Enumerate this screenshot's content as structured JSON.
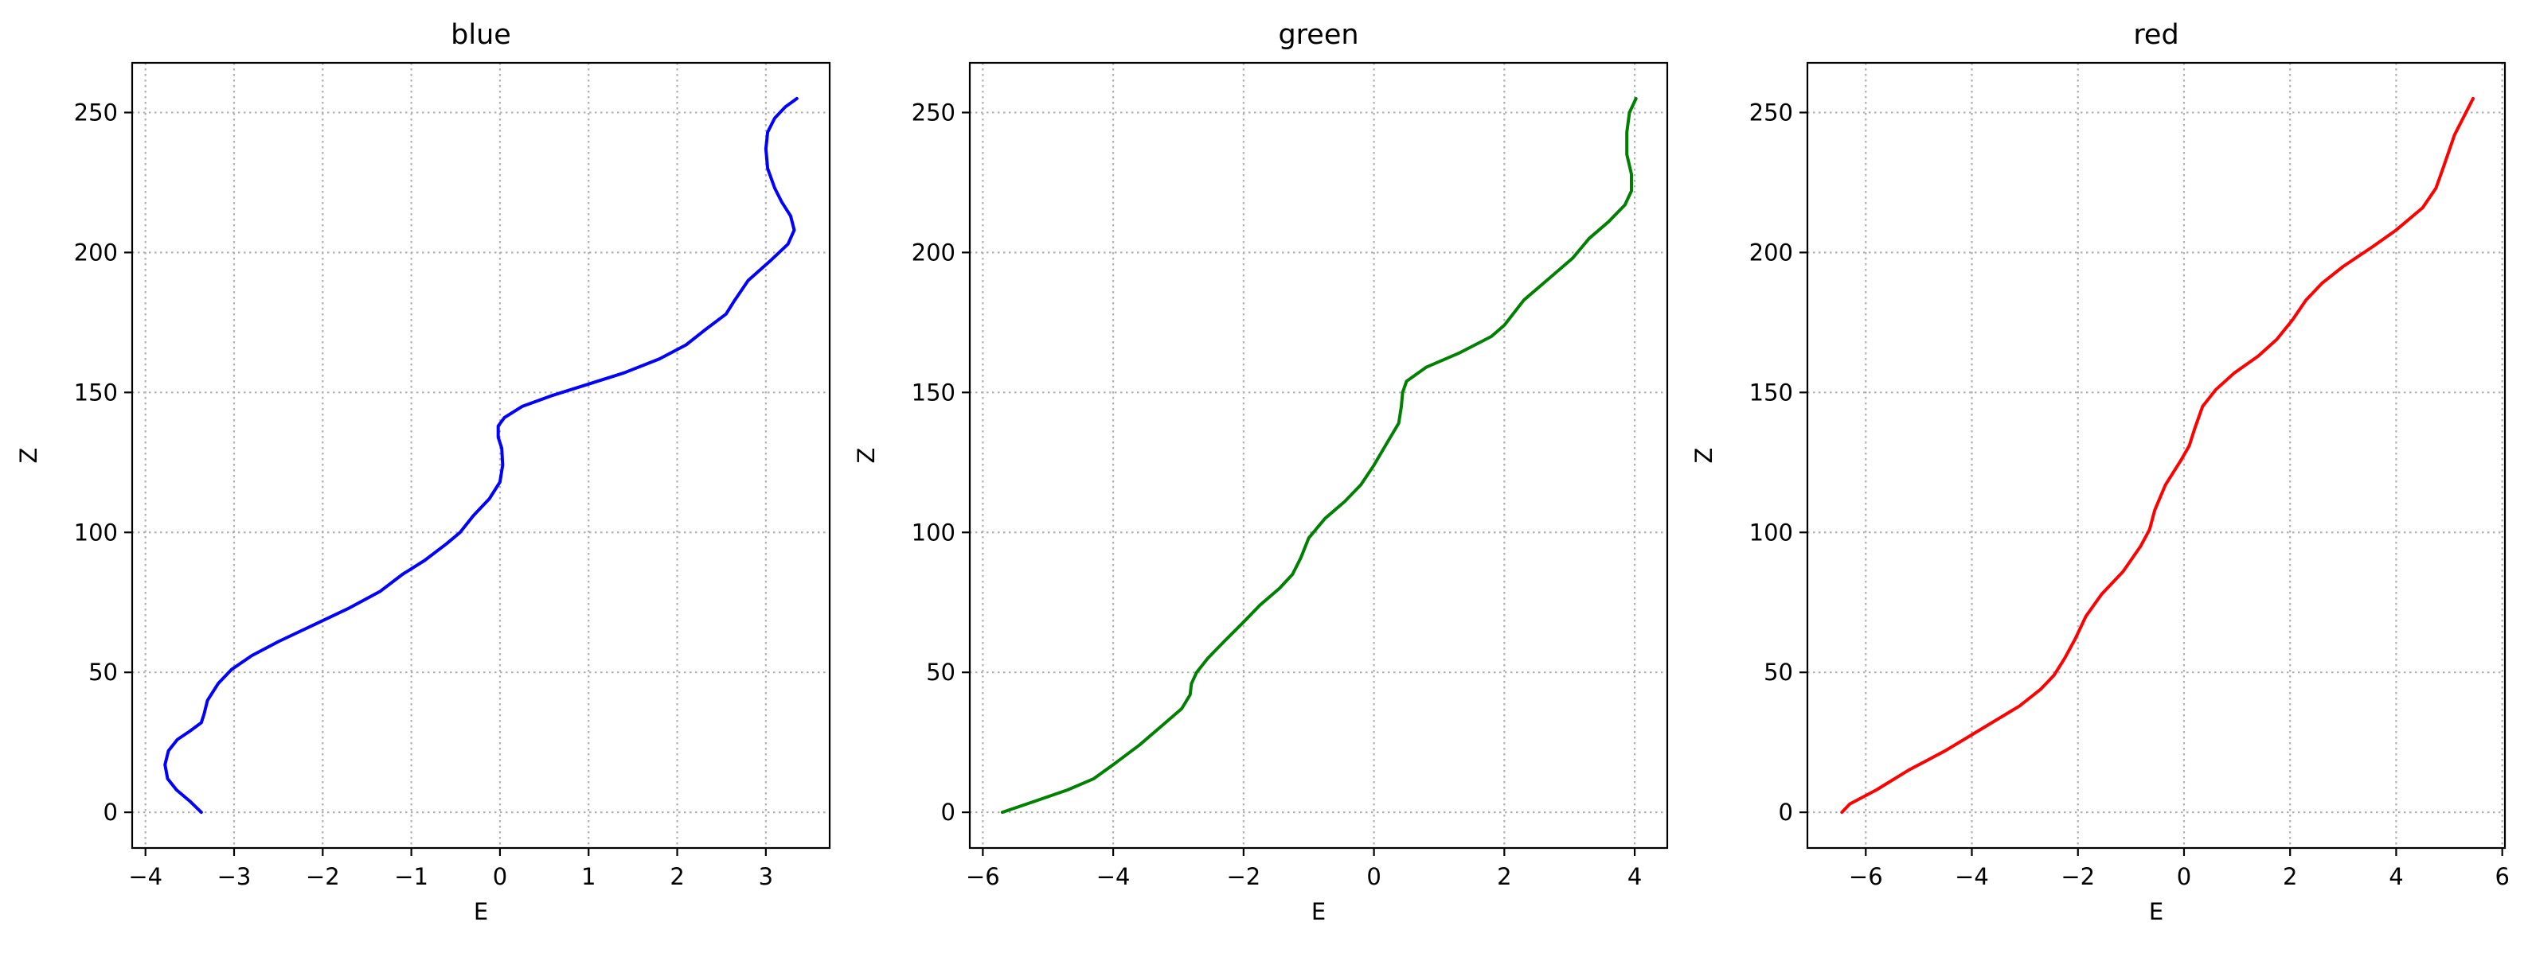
{
  "chart_data": [
    {
      "type": "line",
      "title": "blue",
      "xlabel": "E",
      "ylabel": "Z",
      "color": "#0000ff",
      "grid": true,
      "xlim": [
        -4.15,
        3.72
      ],
      "ylim": [
        -12.75,
        267.75
      ],
      "xticks": [
        -4,
        -3,
        -2,
        -1,
        0,
        1,
        2,
        3
      ],
      "yticks": [
        0,
        50,
        100,
        150,
        200,
        250
      ],
      "x": [
        -3.37,
        -3.5,
        -3.65,
        -3.75,
        -3.78,
        -3.74,
        -3.64,
        -3.5,
        -3.37,
        -3.34,
        -3.3,
        -3.18,
        -3.03,
        -2.8,
        -2.5,
        -2.1,
        -1.7,
        -1.35,
        -1.1,
        -0.85,
        -0.6,
        -0.45,
        -0.3,
        -0.12,
        0.0,
        0.03,
        0.02,
        -0.02,
        -0.02,
        0.05,
        0.25,
        0.6,
        1.0,
        1.4,
        1.8,
        2.1,
        2.3,
        2.55,
        2.65,
        2.8,
        3.05,
        3.25,
        3.32,
        3.28,
        3.18,
        3.1,
        3.02,
        3.0,
        3.02,
        3.1,
        3.22,
        3.35
      ],
      "y": [
        0,
        4,
        8,
        12,
        17,
        22,
        26,
        29,
        32,
        35,
        40,
        46,
        51,
        56,
        61,
        67,
        73,
        79,
        85,
        90,
        96,
        100,
        106,
        112,
        118,
        124,
        130,
        134,
        138,
        141,
        145,
        149,
        153,
        157,
        162,
        167,
        172,
        178,
        183,
        190,
        197,
        203,
        208,
        213,
        218,
        223,
        230,
        237,
        243,
        248,
        252,
        255
      ]
    },
    {
      "type": "line",
      "title": "green",
      "xlabel": "E",
      "ylabel": "Z",
      "color": "#008000",
      "grid": true,
      "xlim": [
        -6.2,
        4.5
      ],
      "ylim": [
        -12.75,
        267.75
      ],
      "xticks": [
        -6,
        -4,
        -2,
        0,
        2,
        4
      ],
      "yticks": [
        0,
        50,
        100,
        150,
        200,
        250
      ],
      "x": [
        -5.7,
        -5.2,
        -4.7,
        -4.3,
        -4.0,
        -3.6,
        -3.25,
        -2.95,
        -2.82,
        -2.8,
        -2.72,
        -2.55,
        -2.3,
        -2.0,
        -1.75,
        -1.45,
        -1.25,
        -1.12,
        -1.0,
        -0.75,
        -0.45,
        -0.2,
        0.0,
        0.2,
        0.38,
        0.42,
        0.44,
        0.5,
        0.8,
        1.3,
        1.8,
        2.0,
        2.3,
        2.7,
        3.05,
        3.3,
        3.6,
        3.85,
        3.95,
        3.95,
        3.88,
        3.88,
        3.92,
        4.02
      ],
      "y": [
        0,
        4,
        8,
        12,
        17,
        24,
        31,
        37,
        42,
        46,
        50,
        55,
        61,
        68,
        74,
        80,
        85,
        91,
        98,
        105,
        111,
        117,
        124,
        132,
        139,
        145,
        150,
        154,
        159,
        164,
        170,
        174,
        183,
        191,
        198,
        205,
        211,
        217,
        222,
        228,
        235,
        243,
        250,
        255
      ]
    },
    {
      "type": "line",
      "title": "red",
      "xlabel": "E",
      "ylabel": "Z",
      "color": "#ff0000",
      "grid": true,
      "xlim": [
        -7.1,
        6.05
      ],
      "ylim": [
        -12.75,
        267.75
      ],
      "xticks": [
        -6,
        -4,
        -2,
        0,
        2,
        4,
        6
      ],
      "yticks": [
        0,
        50,
        100,
        150,
        200,
        250
      ],
      "x": [
        -6.45,
        -6.3,
        -5.8,
        -5.2,
        -4.5,
        -3.8,
        -3.1,
        -2.7,
        -2.45,
        -2.25,
        -2.05,
        -1.85,
        -1.55,
        -1.15,
        -0.82,
        -0.65,
        -0.55,
        -0.35,
        -0.05,
        0.1,
        0.2,
        0.35,
        0.6,
        0.95,
        1.4,
        1.75,
        2.05,
        2.3,
        2.6,
        3.0,
        3.55,
        4.0,
        4.5,
        4.75,
        4.9,
        5.1,
        5.45
      ],
      "y": [
        0,
        3,
        8,
        15,
        22,
        30,
        38,
        44,
        49,
        55,
        62,
        70,
        78,
        86,
        95,
        101,
        108,
        117,
        126,
        131,
        137,
        145,
        151,
        157,
        163,
        169,
        176,
        183,
        189,
        195,
        202,
        208,
        216,
        223,
        231,
        242,
        255
      ]
    }
  ]
}
